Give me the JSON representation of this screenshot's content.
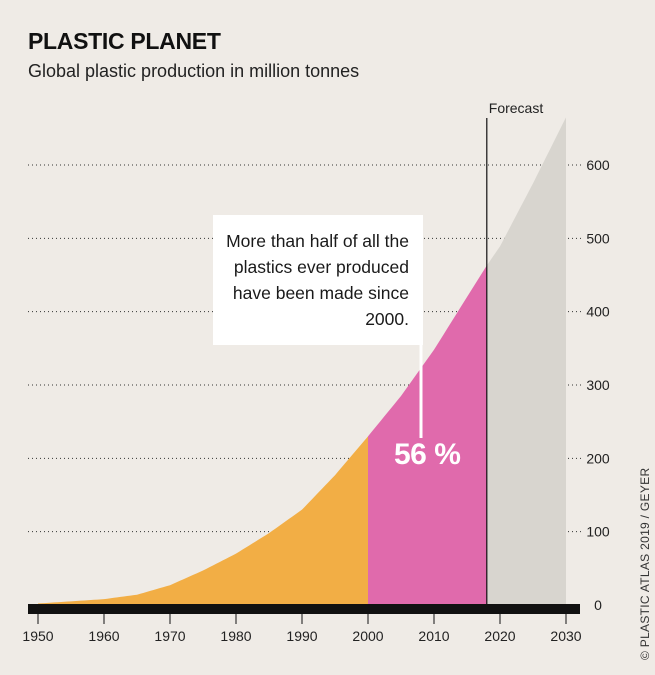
{
  "header": {
    "title": "PLASTIC PLANET",
    "subtitle": "Global plastic production in million tonnes"
  },
  "annotation": {
    "forecast_label": "Forecast",
    "callout_text": "More than half of all the plastics ever produced have been made since 2000.",
    "share_label": "56 %"
  },
  "credit": "© PLASTIC ATLAS 2019 / GEYER",
  "colors": {
    "background": "#efebe6",
    "pre_2000": "#f2ae45",
    "since_2000": "#e06aac",
    "forecast": "#d8d5cf",
    "axis": "#111111"
  },
  "chart_data": {
    "type": "area",
    "x": [
      1950,
      1955,
      1960,
      1965,
      1970,
      1975,
      1980,
      1985,
      1990,
      1995,
      2000,
      2005,
      2010,
      2015,
      2018,
      2020,
      2025,
      2030
    ],
    "y": [
      2,
      5,
      8,
      14,
      27,
      47,
      70,
      98,
      130,
      177,
      230,
      285,
      348,
      420,
      463,
      489,
      575,
      665
    ],
    "segments": [
      {
        "from": 1950,
        "to": 2000,
        "color": "#f2ae45"
      },
      {
        "from": 2000,
        "to": 2018,
        "color": "#e06aac"
      },
      {
        "from": 2018,
        "to": 2030,
        "color": "#d8d5cf",
        "label": "Forecast"
      }
    ],
    "xlim": [
      1950,
      2030
    ],
    "ylim": [
      0,
      650
    ],
    "x_ticks": [
      1950,
      1960,
      1970,
      1980,
      1990,
      2000,
      2010,
      2020,
      2030
    ],
    "y_ticks": [
      0,
      100,
      200,
      300,
      400,
      500,
      600
    ],
    "forecast_start": 2018,
    "grid": "horizontal dotted",
    "xlabel": "",
    "ylabel": ""
  }
}
